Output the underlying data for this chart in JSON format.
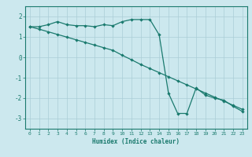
{
  "xlabel": "Humidex (Indice chaleur)",
  "background_color": "#cce8ee",
  "grid_color": "#aacdd6",
  "line_color": "#1a7a6e",
  "xlim": [
    -0.5,
    23.5
  ],
  "ylim": [
    -3.5,
    2.5
  ],
  "xticks": [
    0,
    1,
    2,
    3,
    4,
    5,
    6,
    7,
    8,
    9,
    10,
    11,
    12,
    13,
    14,
    15,
    16,
    17,
    18,
    19,
    20,
    21,
    22,
    23
  ],
  "yticks": [
    -3,
    -2,
    -1,
    0,
    1,
    2
  ],
  "line1_x": [
    0,
    1,
    2,
    3,
    4,
    5,
    6,
    7,
    8,
    9,
    10,
    11,
    12,
    13,
    14,
    15,
    16,
    17,
    18,
    19,
    20,
    21,
    22,
    23
  ],
  "line1_y": [
    1.5,
    1.5,
    1.6,
    1.75,
    1.6,
    1.55,
    1.55,
    1.5,
    1.6,
    1.55,
    1.75,
    1.85,
    1.85,
    1.85,
    1.1,
    -1.75,
    -2.75,
    -2.75,
    -1.5,
    -1.85,
    -2.0,
    -2.1,
    -2.4,
    -2.65
  ],
  "line2_x": [
    0,
    1,
    2,
    3,
    4,
    5,
    6,
    7,
    8,
    9,
    10,
    11,
    12,
    13,
    14,
    15,
    16,
    17,
    18,
    19,
    20,
    21,
    22,
    23
  ],
  "line2_y": [
    1.5,
    1.38,
    1.25,
    1.12,
    0.99,
    0.86,
    0.73,
    0.6,
    0.47,
    0.34,
    0.1,
    -0.12,
    -0.35,
    -0.55,
    -0.75,
    -0.95,
    -1.15,
    -1.35,
    -1.55,
    -1.75,
    -1.95,
    -2.15,
    -2.35,
    -2.55
  ]
}
